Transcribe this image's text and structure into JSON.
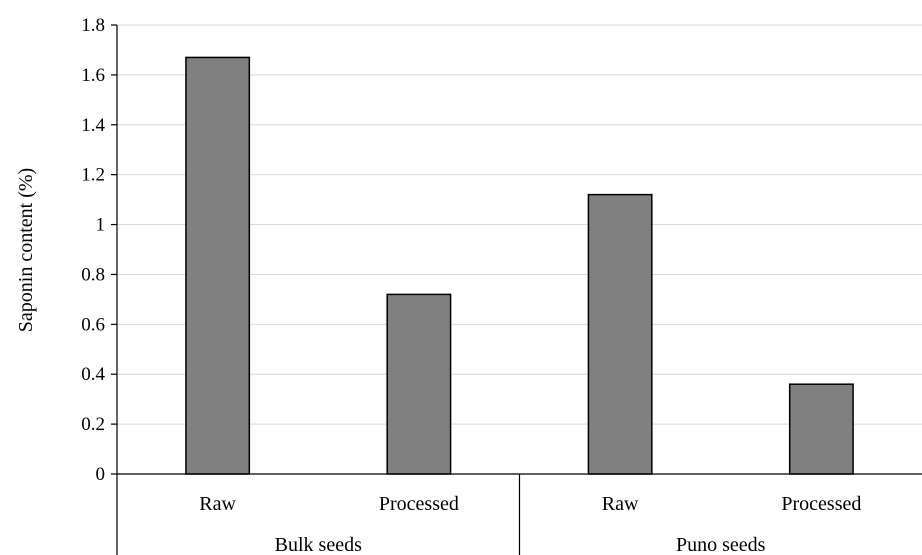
{
  "chart_data": {
    "type": "bar",
    "title": "",
    "xlabel": "",
    "ylabel": "Saponin content (%)",
    "ylim": [
      0,
      1.8
    ],
    "y_ticks": [
      "0",
      "0.2",
      "0.4",
      "0.6",
      "0.8",
      "1",
      "1.2",
      "1.4",
      "1.6",
      "1.8"
    ],
    "grid": true,
    "legend": "none",
    "bar_color": "#808080",
    "groups": [
      {
        "name": "Bulk seeds",
        "categories": [
          "Raw",
          "Processed"
        ],
        "values": [
          1.67,
          0.72
        ]
      },
      {
        "name": "Puno seeds",
        "categories": [
          "Raw",
          "Processed"
        ],
        "values": [
          1.12,
          0.36
        ]
      }
    ]
  }
}
